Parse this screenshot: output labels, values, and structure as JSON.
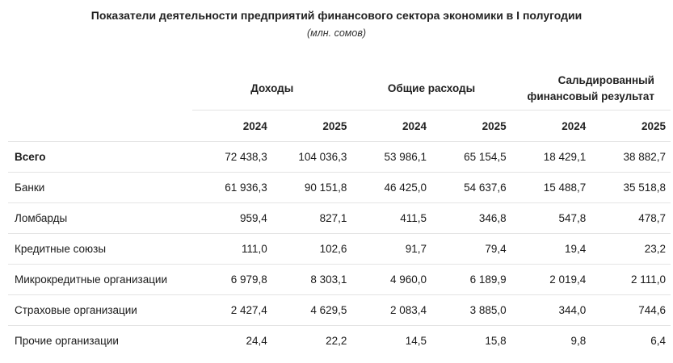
{
  "title": "Показатели деятельности предприятий финансового сектора экономики в I полугодии",
  "subtitle": "(млн. сомов)",
  "table": {
    "groups": [
      "Доходы",
      "Общие расходы",
      "Сальдированный финансовый результат"
    ],
    "years": [
      "2024",
      "2025",
      "2024",
      "2025",
      "2024",
      "2025"
    ],
    "rows": [
      {
        "label": "Всего",
        "values": [
          "72 438,3",
          "104 036,3",
          "53 986,1",
          "65 154,5",
          "18 429,1",
          "38 882,7"
        ]
      },
      {
        "label": "Банки",
        "values": [
          "61 936,3",
          "90 151,8",
          "46 425,0",
          "54 637,6",
          "15 488,7",
          "35 518,8"
        ]
      },
      {
        "label": "Ломбарды",
        "values": [
          "959,4",
          "827,1",
          "411,5",
          "346,8",
          "547,8",
          "478,7"
        ]
      },
      {
        "label": "Кредитные союзы",
        "values": [
          "111,0",
          "102,6",
          "91,7",
          "79,4",
          "19,4",
          "23,2"
        ]
      },
      {
        "label": "Микрокредитные организации",
        "values": [
          "6 979,8",
          "8 303,1",
          "4 960,0",
          "6 189,9",
          "2 019,4",
          "2 111,0"
        ]
      },
      {
        "label": "Страховые организации",
        "values": [
          "2 427,4",
          "4 629,5",
          "2 083,4",
          "3 885,0",
          "344,0",
          "744,6"
        ]
      },
      {
        "label": "Прочие организации",
        "values": [
          "24,4",
          "22,2",
          "14,5",
          "15,8",
          "9,8",
          "6,4"
        ]
      }
    ]
  }
}
